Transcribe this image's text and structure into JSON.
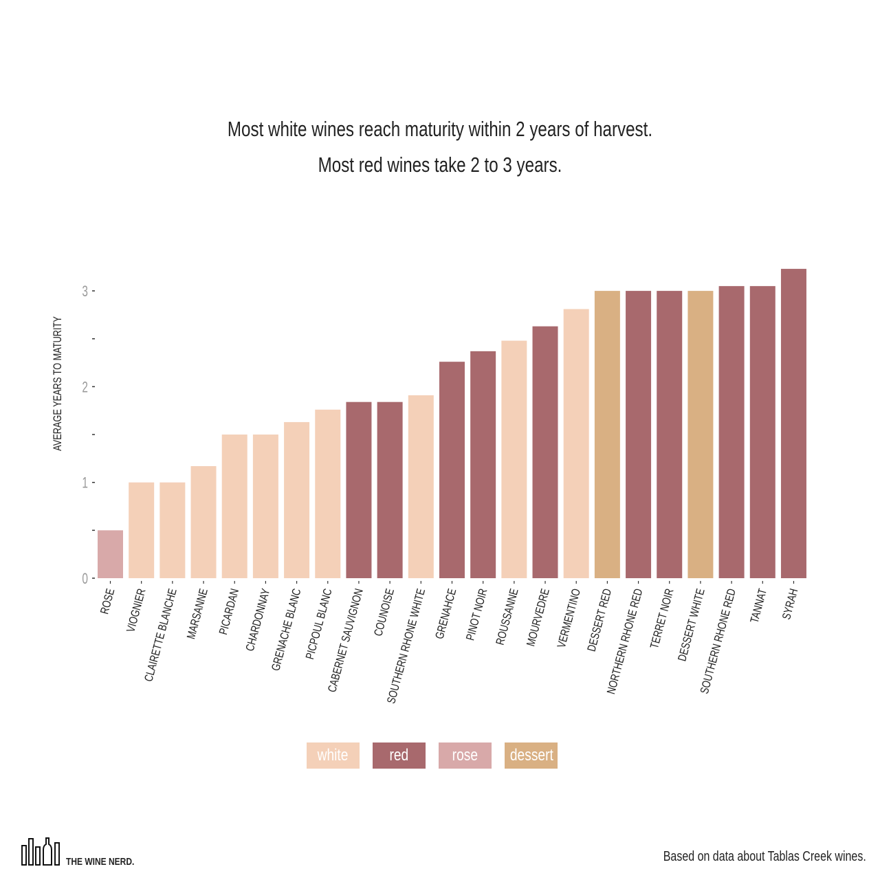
{
  "chart_data": {
    "type": "bar",
    "title": "Most white wines reach maturity within 2 years of harvest.",
    "subtitle": "Most red wines take 2 to 3 years.",
    "xlabel": "",
    "ylabel": "AVERAGE YEARS TO MATURITY",
    "ylim": [
      0,
      3.25
    ],
    "yticks": [
      0,
      0.5,
      1,
      1.5,
      2,
      2.5,
      3
    ],
    "ytick_labels": [
      "0",
      "",
      "1",
      "",
      "2",
      "",
      "3"
    ],
    "grid": false,
    "categories": [
      "ROSE",
      "VIOGNIER",
      "CLAIRETTE BLANCHE",
      "MARSANNE",
      "PICARDAN",
      "CHARDONNAY",
      "GRENACHE BLANC",
      "PICPOUL BLANC",
      "CABERNET SAUVIGNON",
      "COUNOISE",
      "SOUTHERN RHONE WHITE",
      "GRENAHCE",
      "PINOT NOIR",
      "ROUSSANNE",
      "MOURVEDRE",
      "VERMENTINO",
      "DESSERT RED",
      "NORTHERN RHONE RED",
      "TERRET NOIR",
      "DESSERT WHITE",
      "SOUTHERN RHONE RED",
      "TANNAT",
      "SYRAH"
    ],
    "values": [
      0.5,
      1.0,
      1.0,
      1.17,
      1.5,
      1.5,
      1.63,
      1.76,
      1.84,
      1.84,
      1.91,
      2.26,
      2.37,
      2.48,
      2.63,
      2.81,
      3.0,
      3.0,
      3.0,
      3.0,
      3.05,
      3.05,
      3.23
    ],
    "types": [
      "rose",
      "white",
      "white",
      "white",
      "white",
      "white",
      "white",
      "white",
      "red",
      "red",
      "white",
      "red",
      "red",
      "white",
      "red",
      "white",
      "dessert",
      "red",
      "red",
      "dessert",
      "red",
      "red",
      "red"
    ],
    "legend": [
      {
        "key": "white",
        "label": "white",
        "color": "#f4d0b8"
      },
      {
        "key": "red",
        "label": "red",
        "color": "#a8696d"
      },
      {
        "key": "rose",
        "label": "rose",
        "color": "#d8a9a9"
      },
      {
        "key": "dessert",
        "label": "dessert",
        "color": "#d9b083"
      }
    ],
    "legend_position": "bottom"
  },
  "footer": {
    "logo_text": "THE WINE NERD.",
    "source": "Based on data about Tablas Creek wines."
  }
}
